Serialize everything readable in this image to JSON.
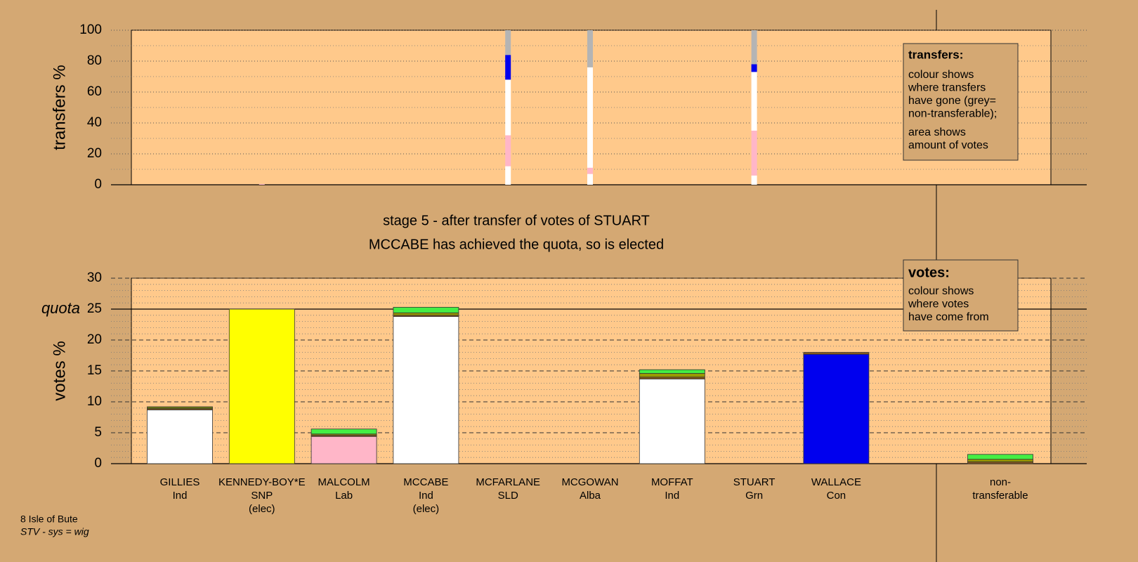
{
  "chart_data": [
    {
      "type": "stacked_bar",
      "y_label": "transfers %",
      "ylim": [
        0,
        100
      ],
      "yticks": [
        0,
        20,
        40,
        60,
        80,
        100
      ],
      "minor_yticks": [
        10,
        30,
        50,
        70,
        90
      ],
      "bars": [
        {
          "segments": []
        },
        {
          "segments": [
            {
              "color": "#ffb6c8",
              "value": 0.5
            }
          ]
        },
        {
          "segments": []
        },
        {
          "segments": []
        },
        {
          "segments": [
            {
              "color": "#ffffff",
              "value": 12
            },
            {
              "color": "#ffb6c8",
              "value": 20
            },
            {
              "color": "#ffffff",
              "value": 36
            },
            {
              "color": "#0000ee",
              "value": 16
            },
            {
              "color": "#b4b4b4",
              "value": 16
            }
          ]
        },
        {
          "segments": [
            {
              "color": "#ffffff",
              "value": 7
            },
            {
              "color": "#ffb6c8",
              "value": 4
            },
            {
              "color": "#ffffff",
              "value": 65
            },
            {
              "color": "#b4b4b4",
              "value": 24
            }
          ]
        },
        {
          "segments": []
        },
        {
          "segments": [
            {
              "color": "#ffffff",
              "value": 6
            },
            {
              "color": "#ffb6c8",
              "value": 29
            },
            {
              "color": "#ffffff",
              "value": 38
            },
            {
              "color": "#0000ee",
              "value": 5
            },
            {
              "color": "#b4b4b4",
              "value": 22
            }
          ]
        },
        {
          "segments": []
        },
        {
          "segments": []
        },
        {
          "segments": []
        }
      ]
    },
    {
      "type": "stacked_bar",
      "y_label": "votes %",
      "ylim": [
        0,
        30
      ],
      "yticks": [
        0,
        5,
        10,
        15,
        20,
        25,
        30
      ],
      "minor_yticks": [
        1,
        2,
        3,
        4,
        6,
        7,
        8,
        9,
        11,
        12,
        13,
        14,
        16,
        17,
        18,
        19,
        21,
        22,
        23,
        24,
        26,
        27,
        28,
        29
      ],
      "reference_line": {
        "label": "quota",
        "value": 25
      },
      "categories": [
        [
          "GILLIES",
          "Ind"
        ],
        [
          "KENNEDY-BOY*E",
          "SNP",
          "(elec)"
        ],
        [
          "MALCOLM",
          "Lab"
        ],
        [
          "MCCABE",
          "Ind",
          "(elec)"
        ],
        [
          "MCFARLANE",
          "SLD"
        ],
        [
          "MCGOWAN",
          "Alba"
        ],
        [
          "MOFFAT",
          "Ind"
        ],
        [
          "STUART",
          "Grn"
        ],
        [
          "WALLACE",
          "Con"
        ],
        null,
        [
          "non-",
          "transferable"
        ]
      ],
      "bars": [
        {
          "segments": [
            {
              "color": "#ffffff",
              "value": 8.7
            },
            {
              "color": "#8b5a1a",
              "value": 0.2
            },
            {
              "color": "#6b7a10",
              "value": 0.3
            }
          ]
        },
        {
          "segments": [
            {
              "color": "#ffff00",
              "value": 25.0
            }
          ]
        },
        {
          "segments": [
            {
              "color": "#ffb6c8",
              "value": 4.4
            },
            {
              "color": "#8b5a1a",
              "value": 0.2
            },
            {
              "color": "#9a9a00",
              "value": 0.2
            },
            {
              "color": "#44ee44",
              "value": 0.8
            }
          ]
        },
        {
          "segments": [
            {
              "color": "#ffffff",
              "value": 23.8
            },
            {
              "color": "#8b5a1a",
              "value": 0.2
            },
            {
              "color": "#9a9a00",
              "value": 0.4
            },
            {
              "color": "#44ee44",
              "value": 0.9
            }
          ]
        },
        {
          "segments": []
        },
        {
          "segments": []
        },
        {
          "segments": [
            {
              "color": "#ffffff",
              "value": 13.7
            },
            {
              "color": "#8b5a1a",
              "value": 0.3
            },
            {
              "color": "#9a9a00",
              "value": 0.6
            },
            {
              "color": "#44ee44",
              "value": 0.6
            }
          ]
        },
        {
          "segments": []
        },
        {
          "segments": [
            {
              "color": "#0000ee",
              "value": 17.7
            },
            {
              "color": "#8b5a1a",
              "value": 0.3
            }
          ]
        },
        {
          "segments": []
        },
        {
          "segments": [
            {
              "color": "#8b5a1a",
              "value": 0.3
            },
            {
              "color": "#9a9a00",
              "value": 0.4
            },
            {
              "color": "#44ee44",
              "value": 0.8
            }
          ]
        }
      ]
    }
  ],
  "stage_title": [
    "stage 5 - after transfer of votes of STUART",
    "MCCABE has achieved the quota, so is elected"
  ],
  "notes": [
    {
      "heading": "transfers:",
      "paragraphs": [
        [
          "colour shows",
          "where transfers",
          "have gone (grey=",
          "non-transferable);"
        ],
        [
          "area shows",
          "amount of votes"
        ]
      ]
    },
    {
      "heading": "votes:",
      "paragraphs": [
        [
          "colour shows",
          "where votes",
          "have come from"
        ]
      ]
    }
  ],
  "footer": [
    "8 Isle of Bute",
    "STV - sys = wig"
  ]
}
